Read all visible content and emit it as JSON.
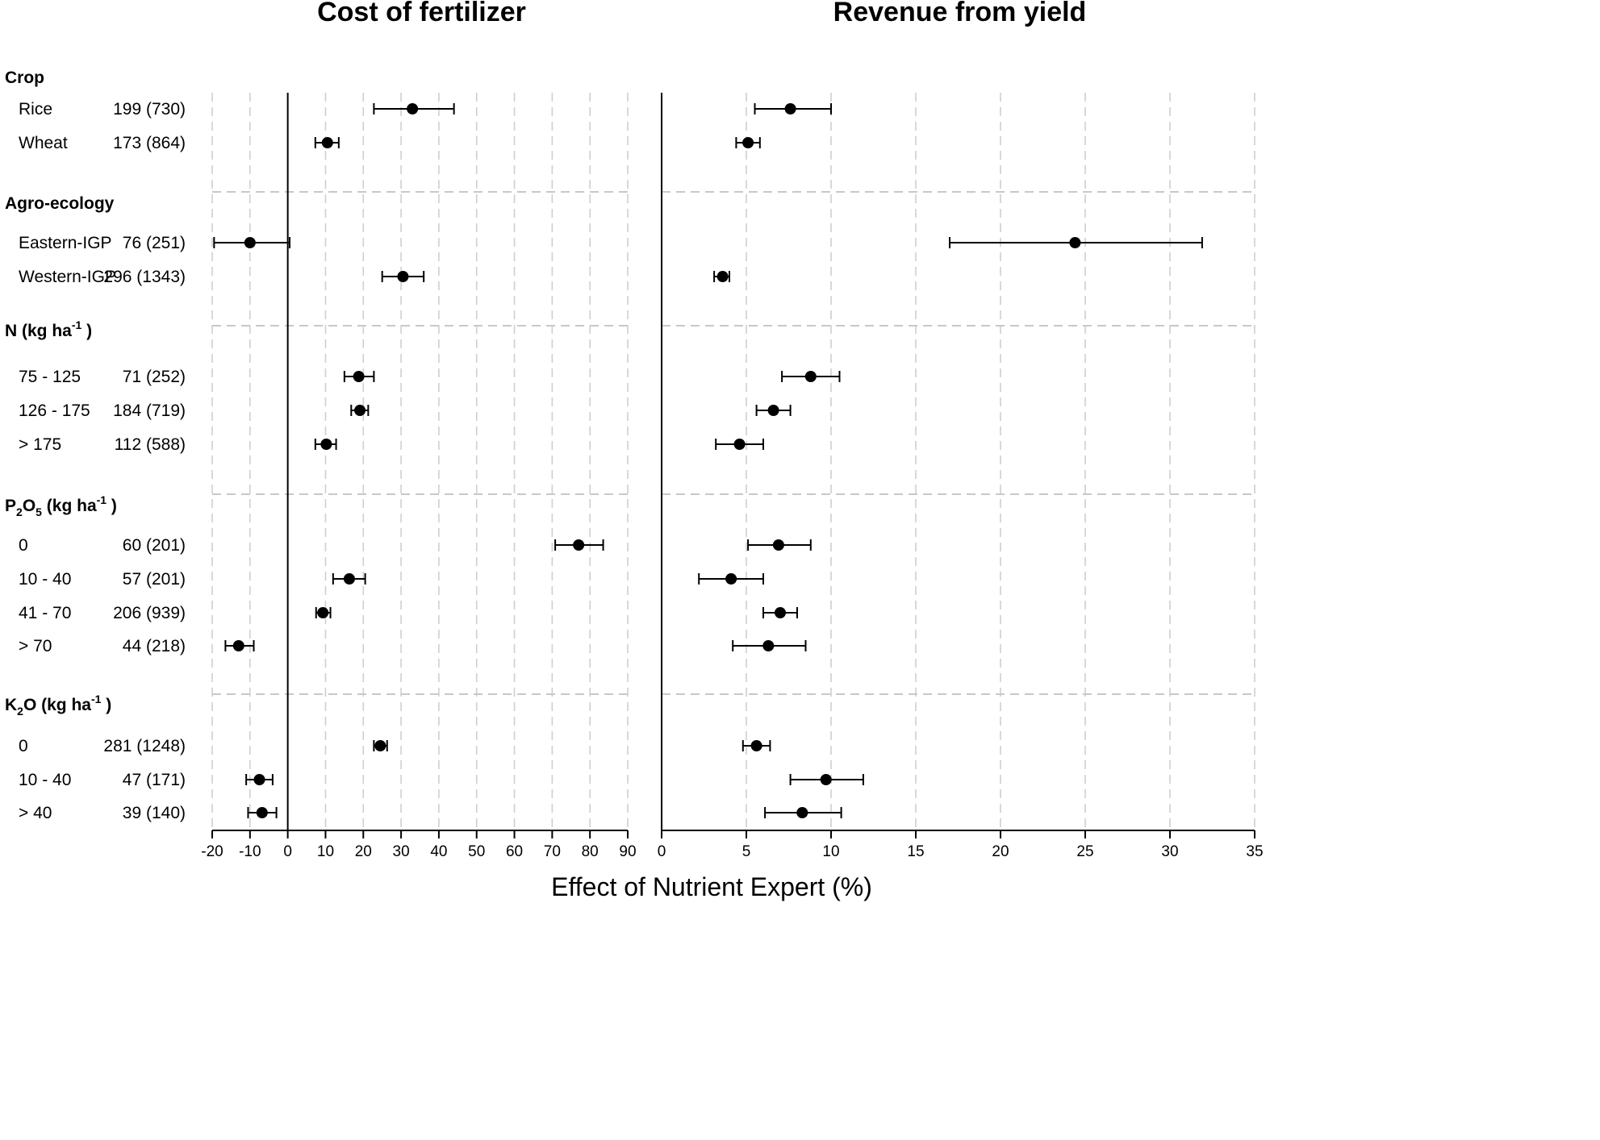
{
  "chart_data": {
    "type": "forest",
    "xlabel": "Effect of Nutrient Expert (%)",
    "groups": [
      {
        "key": "crop",
        "label": "Crop",
        "rows": [
          {
            "label": "Rice",
            "n": "199 (730)"
          },
          {
            "label": "Wheat",
            "n": "173 (864)"
          }
        ]
      },
      {
        "key": "agro",
        "label": "Agro-ecology",
        "rows": [
          {
            "label": "Eastern-IGP",
            "n": "76 (251)"
          },
          {
            "label": "Western-IGP",
            "n": "296 (1343)"
          }
        ]
      },
      {
        "key": "n",
        "label": "N (kg ha",
        "label_sup": "-1",
        "label_suffix": ")",
        "rows": [
          {
            "label": "75 - 125",
            "n": "71 (252)"
          },
          {
            "label": "126 - 175",
            "n": "184 (719)"
          },
          {
            "label": "> 175",
            "n": "112 (588)"
          }
        ]
      },
      {
        "key": "p",
        "label": "P",
        "label_sub1": "2",
        "label_mid": "O",
        "label_sub2": "5",
        "label_rest": " (kg ha",
        "label_sup": "-1",
        "label_suffix": ")",
        "rows": [
          {
            "label": "0",
            "n": "60 (201)"
          },
          {
            "label": "10 - 40",
            "n": "57 (201)"
          },
          {
            "label": "41 - 70",
            "n": "206 (939)"
          },
          {
            "label": "> 70",
            "n": "44 (218)"
          }
        ]
      },
      {
        "key": "k",
        "label": "K",
        "label_sub1": "2",
        "label_mid": "O (kg ha",
        "label_sup": "-1",
        "label_suffix": ")",
        "rows": [
          {
            "label": "0",
            "n": "281 (1248)"
          },
          {
            "label": "10 - 40",
            "n": "47 (171)"
          },
          {
            "label": "> 40",
            "n": "39 (140)"
          }
        ]
      }
    ],
    "panels": [
      {
        "title": "Cost of fertilizer",
        "xlim": [
          -20,
          90
        ],
        "ticks": [
          -20,
          -10,
          0,
          10,
          20,
          30,
          40,
          50,
          60,
          70,
          80,
          90
        ],
        "estimates": [
          {
            "mean": 33,
            "lo": 22.8,
            "hi": 44
          },
          {
            "mean": 10.5,
            "lo": 7.3,
            "hi": 13.5
          },
          {
            "mean": -10,
            "lo": -19.5,
            "hi": 0.5
          },
          {
            "mean": 30.5,
            "lo": 25,
            "hi": 36
          },
          {
            "mean": 18.8,
            "lo": 15,
            "hi": 22.8
          },
          {
            "mean": 19.1,
            "lo": 16.8,
            "hi": 21.3
          },
          {
            "mean": 10.2,
            "lo": 7.3,
            "hi": 12.8
          },
          {
            "mean": 77,
            "lo": 70.8,
            "hi": 83.5
          },
          {
            "mean": 16.3,
            "lo": 12,
            "hi": 20.5
          },
          {
            "mean": 9.3,
            "lo": 7.5,
            "hi": 11.3
          },
          {
            "mean": -13,
            "lo": -16.5,
            "hi": -9
          },
          {
            "mean": 24.5,
            "lo": 22.8,
            "hi": 26.3
          },
          {
            "mean": -7.5,
            "lo": -11,
            "hi": -4
          },
          {
            "mean": -6.8,
            "lo": -10.5,
            "hi": -3
          }
        ]
      },
      {
        "title": "Revenue from yield",
        "xlim": [
          0,
          35
        ],
        "ticks": [
          0,
          5,
          10,
          15,
          20,
          25,
          30,
          35
        ],
        "estimates": [
          {
            "mean": 7.6,
            "lo": 5.5,
            "hi": 10
          },
          {
            "mean": 5.1,
            "lo": 4.4,
            "hi": 5.8
          },
          {
            "mean": 24.4,
            "lo": 17,
            "hi": 31.9
          },
          {
            "mean": 3.6,
            "lo": 3.1,
            "hi": 4
          },
          {
            "mean": 8.8,
            "lo": 7.1,
            "hi": 10.5
          },
          {
            "mean": 6.6,
            "lo": 5.6,
            "hi": 7.6
          },
          {
            "mean": 4.6,
            "lo": 3.2,
            "hi": 6
          },
          {
            "mean": 6.9,
            "lo": 5.1,
            "hi": 8.8
          },
          {
            "mean": 4.1,
            "lo": 2.2,
            "hi": 6
          },
          {
            "mean": 7,
            "lo": 6,
            "hi": 8
          },
          {
            "mean": 6.3,
            "lo": 4.2,
            "hi": 8.5
          },
          {
            "mean": 5.6,
            "lo": 4.8,
            "hi": 6.4
          },
          {
            "mean": 9.7,
            "lo": 7.6,
            "hi": 11.9
          },
          {
            "mean": 8.3,
            "lo": 6.1,
            "hi": 10.6
          }
        ]
      }
    ]
  }
}
